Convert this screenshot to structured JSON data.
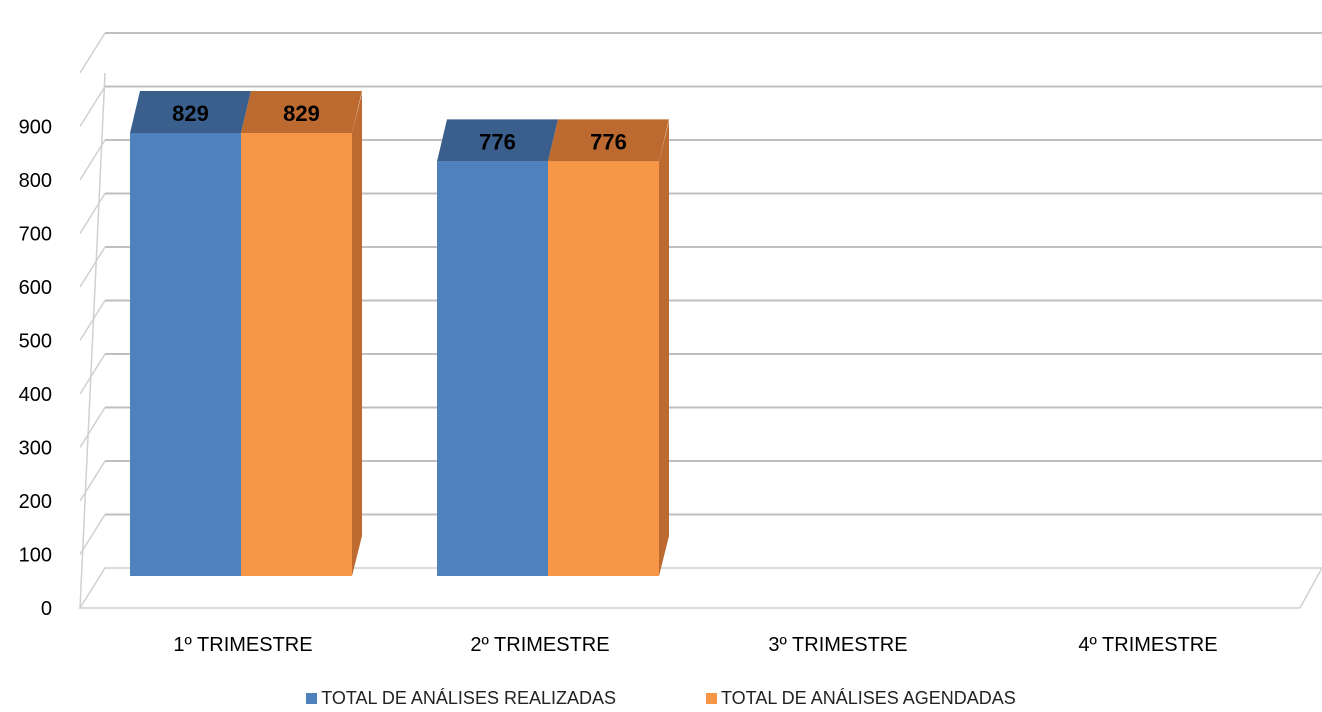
{
  "chart_data": {
    "type": "bar",
    "title": "",
    "xlabel": "",
    "ylabel": "",
    "categories": [
      "1º TRIMESTRE",
      "2º TRIMESTRE",
      "3º TRIMESTRE",
      "4º TRIMESTRE"
    ],
    "series": [
      {
        "name": "TOTAL DE ANÁLISES REALIZADAS",
        "values": [
          829,
          776,
          null,
          null
        ],
        "color": "#4F81BD",
        "top_color": "#3A5F8D"
      },
      {
        "name": "TOTAL DE ANÁLISES AGENDADAS",
        "values": [
          829,
          776,
          null,
          null
        ],
        "color": "#F79646",
        "top_color": "#BC6A30"
      }
    ],
    "ylim": [
      0,
      1000
    ],
    "yticks": [
      0,
      100,
      200,
      300,
      400,
      500,
      600,
      700,
      800,
      900
    ],
    "grid": true,
    "legend_position": "bottom",
    "style": "3d-clustered-column"
  }
}
